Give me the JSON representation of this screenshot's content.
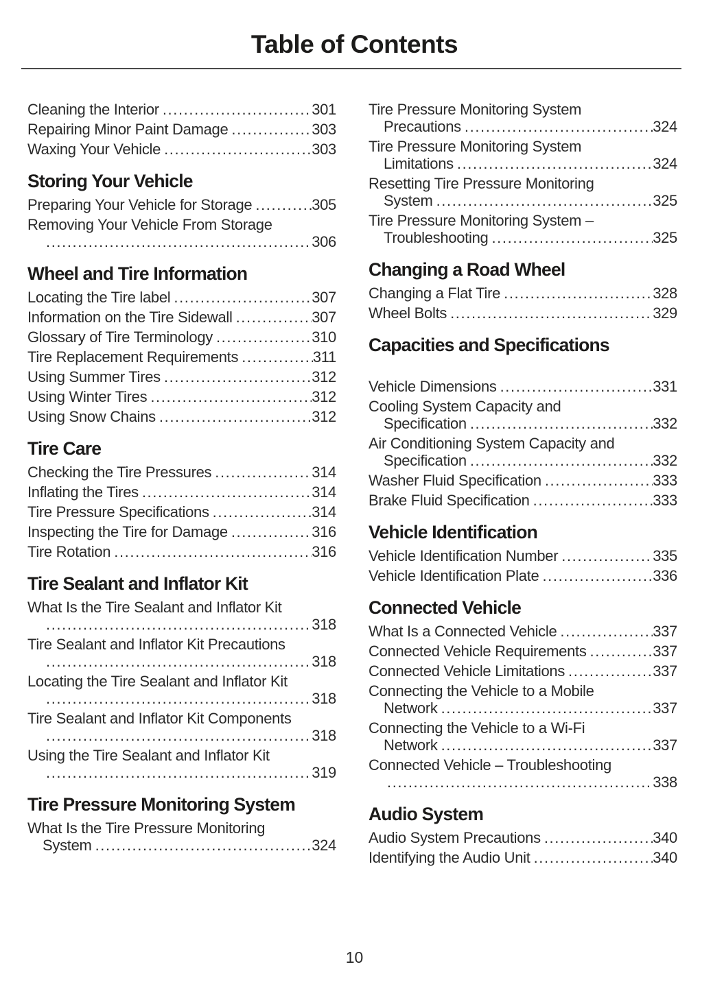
{
  "page": {
    "title": "Table of Contents",
    "page_number": "10"
  },
  "columns": [
    {
      "name": "left",
      "blocks": [
        {
          "type": "entry",
          "lines": [
            "Cleaning the Interior"
          ],
          "page": "301"
        },
        {
          "type": "entry",
          "lines": [
            "Repairing Minor Paint Damage"
          ],
          "page": "303"
        },
        {
          "type": "entry",
          "lines": [
            "Waxing Your Vehicle"
          ],
          "page": "303"
        },
        {
          "type": "heading",
          "text": "Storing Your Vehicle"
        },
        {
          "type": "entry",
          "lines": [
            "Preparing Your Vehicle for Storage"
          ],
          "page": "305"
        },
        {
          "type": "entry",
          "lines": [
            "Removing Your Vehicle From Storage",
            ""
          ],
          "page": "306"
        },
        {
          "type": "heading",
          "text": "Wheel and Tire Information"
        },
        {
          "type": "entry",
          "lines": [
            "Locating the Tire label"
          ],
          "page": "307"
        },
        {
          "type": "entry",
          "lines": [
            "Information on the Tire Sidewall"
          ],
          "page": "307"
        },
        {
          "type": "entry",
          "lines": [
            "Glossary of Tire Terminology"
          ],
          "page": "310"
        },
        {
          "type": "entry",
          "lines": [
            "Tire Replacement Requirements"
          ],
          "page": "311"
        },
        {
          "type": "entry",
          "lines": [
            "Using Summer Tires"
          ],
          "page": "312"
        },
        {
          "type": "entry",
          "lines": [
            "Using Winter Tires"
          ],
          "page": "312"
        },
        {
          "type": "entry",
          "lines": [
            "Using Snow Chains"
          ],
          "page": "312"
        },
        {
          "type": "heading",
          "text": "Tire Care"
        },
        {
          "type": "entry",
          "lines": [
            "Checking the Tire Pressures"
          ],
          "page": "314"
        },
        {
          "type": "entry",
          "lines": [
            "Inflating the Tires"
          ],
          "page": "314"
        },
        {
          "type": "entry",
          "lines": [
            "Tire Pressure Specifications"
          ],
          "page": "314"
        },
        {
          "type": "entry",
          "lines": [
            "Inspecting the Tire for Damage"
          ],
          "page": "316"
        },
        {
          "type": "entry",
          "lines": [
            "Tire Rotation"
          ],
          "page": "316"
        },
        {
          "type": "heading",
          "text": "Tire Sealant and Inflator Kit"
        },
        {
          "type": "entry",
          "lines": [
            "What Is the Tire Sealant and Inflator Kit",
            ""
          ],
          "page": "318"
        },
        {
          "type": "entry",
          "lines": [
            "Tire Sealant and Inflator Kit Precautions",
            ""
          ],
          "page": "318"
        },
        {
          "type": "entry",
          "lines": [
            "Locating the Tire Sealant and Inflator Kit",
            ""
          ],
          "page": "318"
        },
        {
          "type": "entry",
          "lines": [
            "Tire Sealant and Inflator Kit Components",
            ""
          ],
          "page": "318"
        },
        {
          "type": "entry",
          "lines": [
            "Using the Tire Sealant and Inflator Kit",
            ""
          ],
          "page": "319"
        },
        {
          "type": "heading",
          "text": "Tire Pressure Monitoring System"
        },
        {
          "type": "entry",
          "lines": [
            "What Is the Tire Pressure Monitoring",
            "System"
          ],
          "page": "324"
        }
      ]
    },
    {
      "name": "right",
      "blocks": [
        {
          "type": "entry",
          "lines": [
            "Tire Pressure Monitoring System",
            "Precautions"
          ],
          "page": "324"
        },
        {
          "type": "entry",
          "lines": [
            "Tire Pressure Monitoring System",
            "Limitations"
          ],
          "page": "324"
        },
        {
          "type": "entry",
          "lines": [
            "Resetting Tire Pressure Monitoring",
            "System"
          ],
          "page": "325"
        },
        {
          "type": "entry",
          "lines": [
            "Tire Pressure Monitoring System –",
            "Troubleshooting"
          ],
          "page": "325"
        },
        {
          "type": "heading",
          "text": "Changing a Road Wheel"
        },
        {
          "type": "entry",
          "lines": [
            "Changing a Flat Tire"
          ],
          "page": "328"
        },
        {
          "type": "entry",
          "lines": [
            "Wheel Bolts"
          ],
          "page": "329"
        },
        {
          "type": "heading",
          "text": "Capacities and Specifications"
        },
        {
          "type": "spacer"
        },
        {
          "type": "entry",
          "lines": [
            "Vehicle Dimensions"
          ],
          "page": "331"
        },
        {
          "type": "entry",
          "lines": [
            "Cooling System Capacity and",
            "Specification"
          ],
          "page": "332"
        },
        {
          "type": "entry",
          "lines": [
            "Air Conditioning System Capacity and",
            "Specification"
          ],
          "page": "332"
        },
        {
          "type": "entry",
          "lines": [
            "Washer Fluid Specification"
          ],
          "page": "333"
        },
        {
          "type": "entry",
          "lines": [
            "Brake Fluid Specification"
          ],
          "page": "333"
        },
        {
          "type": "heading",
          "text": "Vehicle Identification"
        },
        {
          "type": "entry",
          "lines": [
            "Vehicle Identification Number"
          ],
          "page": "335"
        },
        {
          "type": "entry",
          "lines": [
            "Vehicle Identification Plate"
          ],
          "page": "336"
        },
        {
          "type": "heading",
          "text": "Connected Vehicle"
        },
        {
          "type": "entry",
          "lines": [
            "What Is a Connected Vehicle"
          ],
          "page": "337"
        },
        {
          "type": "entry",
          "lines": [
            "Connected Vehicle Requirements"
          ],
          "page": "337"
        },
        {
          "type": "entry",
          "lines": [
            "Connected Vehicle Limitations"
          ],
          "page": "337"
        },
        {
          "type": "entry",
          "lines": [
            "Connecting the Vehicle to a Mobile",
            "Network"
          ],
          "page": "337"
        },
        {
          "type": "entry",
          "lines": [
            "Connecting the Vehicle to a Wi-Fi",
            "Network"
          ],
          "page": "337"
        },
        {
          "type": "entry",
          "lines": [
            "Connected Vehicle – Troubleshooting",
            ""
          ],
          "page": "338"
        },
        {
          "type": "heading",
          "text": "Audio System"
        },
        {
          "type": "entry",
          "lines": [
            "Audio System Precautions"
          ],
          "page": "340"
        },
        {
          "type": "entry",
          "lines": [
            "Identifying the Audio Unit"
          ],
          "page": "340"
        }
      ]
    }
  ]
}
